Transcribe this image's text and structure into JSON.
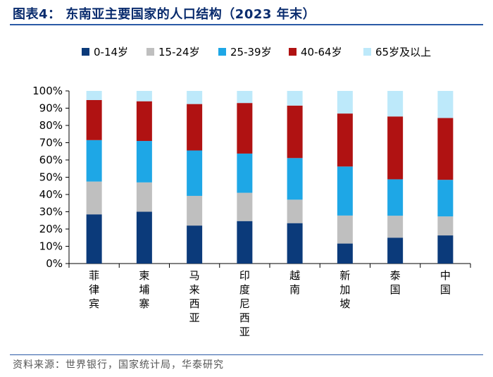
{
  "header": {
    "title": "图表4：  东南亚主要国家的人口结构（2023 年末）"
  },
  "footer": {
    "source": "资料来源：世界银行，国家统计局，华泰研究"
  },
  "chart_data": {
    "type": "bar",
    "stacked": true,
    "normalized": true,
    "categories": [
      "菲律宾",
      "柬埔寨",
      "马来西亚",
      "印度尼西亚",
      "越南",
      "新加坡",
      "泰国",
      "中国"
    ],
    "series": [
      {
        "name": "0-14岁",
        "color": "#0b3a7a",
        "values": [
          28.5,
          30.0,
          22.0,
          24.6,
          23.4,
          11.6,
          15.0,
          16.3
        ]
      },
      {
        "name": "15-24岁",
        "color": "#bfbfbf",
        "values": [
          19.0,
          17.0,
          17.2,
          16.4,
          13.6,
          16.2,
          12.7,
          11.0
        ]
      },
      {
        "name": "25-39岁",
        "color": "#1ea7e6",
        "values": [
          24.0,
          24.0,
          26.3,
          22.7,
          24.1,
          28.4,
          21.1,
          21.2
        ]
      },
      {
        "name": "40-64岁",
        "color": "#b01212",
        "values": [
          23.2,
          23.0,
          26.9,
          29.3,
          30.4,
          30.7,
          36.4,
          35.8
        ]
      },
      {
        "name": "65岁及以上",
        "color": "#bde9fa",
        "values": [
          5.3,
          6.0,
          7.6,
          7.0,
          8.5,
          13.1,
          14.8,
          15.7
        ]
      }
    ],
    "yticks": [
      "0%",
      "10%",
      "20%",
      "30%",
      "40%",
      "50%",
      "60%",
      "70%",
      "80%",
      "90%",
      "100%"
    ],
    "ylim": [
      0,
      100
    ],
    "legend_position": "top",
    "grid": false
  }
}
